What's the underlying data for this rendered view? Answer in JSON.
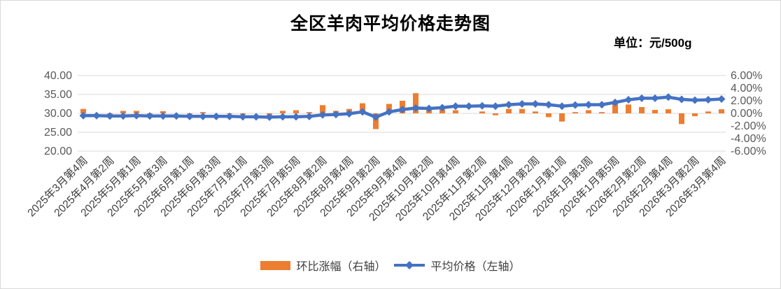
{
  "title": "全区羊肉平均价格走势图",
  "unit_label": "单位：元/500g",
  "legend": {
    "bar_label": "环比涨幅（右轴）",
    "line_label": "平均价格（左轴）"
  },
  "left_axis": {
    "ticks": [
      "40.00",
      "35.00",
      "30.00",
      "25.00",
      "20.00"
    ],
    "min": 20,
    "max": 40,
    "tick_step": 5
  },
  "right_axis": {
    "ticks": [
      "6.00%",
      "4.00%",
      "2.00%",
      "0.00%",
      "-2.00%",
      "-4.00%",
      "-6.00%"
    ],
    "min": -6,
    "max": 6,
    "tick_step": 2
  },
  "colors": {
    "bar": "#ED7D31",
    "line": "#4472C4",
    "grid": "#D9D9D9",
    "tick_text": "#595959",
    "x_label_text": "#3f3f3f"
  },
  "chart_data": {
    "type": "bar+line combo",
    "title": "全区羊肉平均价格走势图",
    "unit": "元/500g",
    "grid": true,
    "legend_position": "bottom",
    "n_points": 49,
    "label_interval": 2,
    "x_labels": [
      "2025年3月第4周",
      "2025年4月第2周",
      "2025年5月第1周",
      "2025年5月第3周",
      "2025年6月第1周",
      "2025年6月第3周",
      "2025年7月第1周",
      "2025年7月第3周",
      "2025年7月第5周",
      "2025年8月第2周",
      "2025年8月第4周",
      "2025年9月第2周",
      "2025年9月第4周",
      "2025年10月第2周",
      "2025年10月第4周",
      "2025年11月第2周",
      "2025年11月第4周",
      "2025年12月第2周",
      "2026年1月第1周",
      "2026年1月第3周",
      "2026年1月第5周",
      "2026年2月第2周",
      "2026年2月第4周",
      "2026年3月第2周",
      "2026年3月第4周"
    ],
    "left_axis_range": [
      20,
      40
    ],
    "right_axis_range_pct": [
      -6,
      6
    ],
    "series": [
      {
        "name": "环比涨幅（右轴）",
        "type": "bar",
        "axis": "right",
        "unit": "%",
        "color": "#ED7D31",
        "values": [
          0.7,
          0.0,
          -0.2,
          0.4,
          0.4,
          -0.2,
          0.35,
          0.0,
          -0.2,
          0.2,
          0.0,
          -0.1,
          -0.2,
          0.0,
          -0.3,
          0.4,
          0.5,
          0.2,
          1.3,
          0.4,
          0.7,
          1.6,
          -2.5,
          1.5,
          2.0,
          3.2,
          0.9,
          0.6,
          0.5,
          0.0,
          0.3,
          -0.3,
          0.7,
          0.7,
          0.3,
          -0.6,
          -1.3,
          0.2,
          0.5,
          0.2,
          1.6,
          1.4,
          1.0,
          0.55,
          0.65,
          -1.7,
          -0.45,
          0.3,
          0.65
        ]
      },
      {
        "name": "平均价格（左轴）",
        "type": "line",
        "axis": "left",
        "unit": "元/500g",
        "color": "#4472C4",
        "values": [
          29.4,
          29.4,
          29.3,
          29.3,
          29.4,
          29.3,
          29.3,
          29.3,
          29.2,
          29.2,
          29.2,
          29.2,
          29.1,
          29.1,
          29.0,
          29.1,
          29.1,
          29.2,
          29.6,
          29.7,
          29.9,
          30.4,
          29.0,
          30.4,
          31.0,
          31.4,
          31.3,
          31.5,
          31.9,
          31.9,
          32.0,
          31.9,
          32.3,
          32.5,
          32.5,
          32.3,
          31.9,
          32.2,
          32.3,
          32.3,
          32.9,
          33.6,
          34.0,
          34.0,
          34.3,
          33.7,
          33.5,
          33.6,
          33.8
        ]
      }
    ]
  }
}
